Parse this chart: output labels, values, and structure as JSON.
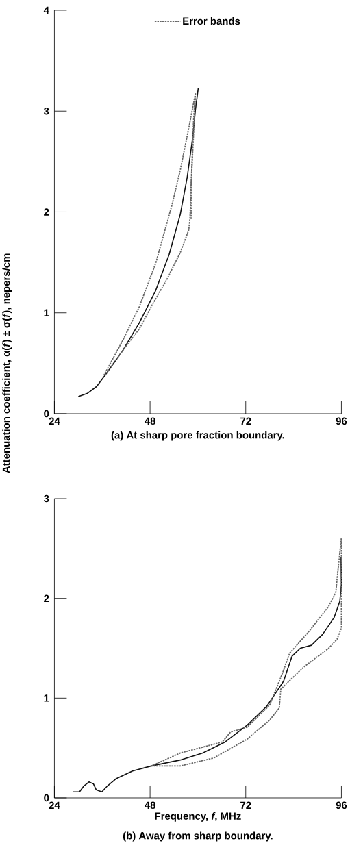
{
  "chart_data": [
    {
      "type": "line",
      "title": "(a) At sharp pore fraction boundary.",
      "ylabel": "Attenuation coefficient, α(*f*) ± σ(*f*), nepers/cm",
      "xlim": [
        24,
        96
      ],
      "ylim": [
        0,
        4
      ],
      "xticks": [
        24,
        48,
        72,
        96
      ],
      "yticks": [
        0,
        1,
        2,
        3,
        4
      ],
      "legend": "top",
      "series": [
        {
          "color": "#111111",
          "line_style": "solid",
          "x": [
            30.0,
            32.2,
            34.6,
            36.7,
            41.2,
            45.3,
            49.4,
            52.8,
            55.6,
            57.3,
            58.7,
            59.4,
            60.1
          ],
          "values": [
            0.17,
            0.2,
            0.27,
            0.38,
            0.63,
            0.9,
            1.22,
            1.58,
            1.98,
            2.34,
            2.74,
            3.02,
            3.23
          ]
        },
        {
          "name": "Error bands",
          "color": "#666666",
          "line_style": "dashed",
          "x": [
            36.4,
            41.2,
            45.3,
            49.4,
            53.5,
            55.6,
            57.7,
            59.4,
            58.3,
            58.3
          ],
          "values": [
            0.38,
            0.73,
            1.06,
            1.49,
            2.07,
            2.42,
            2.83,
            3.18,
            2.26,
            1.93
          ]
        },
        {
          "color": "#666666",
          "line_style": "dashed",
          "x": [
            36.7,
            41.2,
            45.3,
            48.7,
            52.2,
            55.6,
            57.7,
            58.0,
            58.3,
            58.9,
            59.3
          ],
          "values": [
            0.38,
            0.63,
            0.84,
            1.09,
            1.33,
            1.6,
            1.82,
            1.93,
            2.26,
            2.9,
            3.15
          ]
        }
      ]
    },
    {
      "type": "line",
      "title": "(b) Away from sharp boundary.",
      "xlabel": "Frequency, *f*, MHz",
      "xlim": [
        24,
        96
      ],
      "ylim": [
        0,
        3
      ],
      "xticks": [
        24,
        48,
        72,
        96
      ],
      "yticks": [
        0,
        1,
        2,
        3
      ],
      "series": [
        {
          "color": "#111111",
          "line_style": "solid",
          "x": [
            28.6,
            30.3,
            31.4,
            32.7,
            33.8,
            34.5,
            35.9,
            37.3,
            39.4,
            43.6,
            48.3,
            55.6,
            61.2,
            66.8,
            72.4,
            77.3,
            81.5,
            83.6,
            85.7,
            88.5,
            91.3,
            94.2,
            95.6,
            96.0,
            95.9
          ],
          "values": [
            0.06,
            0.06,
            0.12,
            0.16,
            0.14,
            0.08,
            0.06,
            0.12,
            0.19,
            0.27,
            0.32,
            0.38,
            0.45,
            0.56,
            0.73,
            0.92,
            1.17,
            1.42,
            1.5,
            1.53,
            1.64,
            1.81,
            1.97,
            2.14,
            2.41
          ]
        },
        {
          "color": "#666666",
          "line_style": "dashed",
          "x": [
            48.3,
            55.6,
            66.1,
            68.2,
            72.4,
            78.0,
            81.5,
            83.0,
            87.9,
            92.8,
            94.6,
            94.9,
            96.0
          ],
          "values": [
            0.32,
            0.45,
            0.56,
            0.66,
            0.71,
            0.93,
            1.28,
            1.45,
            1.67,
            1.92,
            2.06,
            2.19,
            2.61
          ]
        },
        {
          "color": "#666666",
          "line_style": "dashed",
          "x": [
            48.3,
            55.6,
            64.0,
            72.4,
            78.0,
            80.4,
            80.8,
            86.5,
            92.8,
            94.9,
            96.0,
            96.0
          ],
          "values": [
            0.32,
            0.32,
            0.4,
            0.59,
            0.78,
            0.9,
            1.09,
            1.31,
            1.5,
            1.59,
            1.7,
            2.58
          ]
        }
      ]
    }
  ]
}
